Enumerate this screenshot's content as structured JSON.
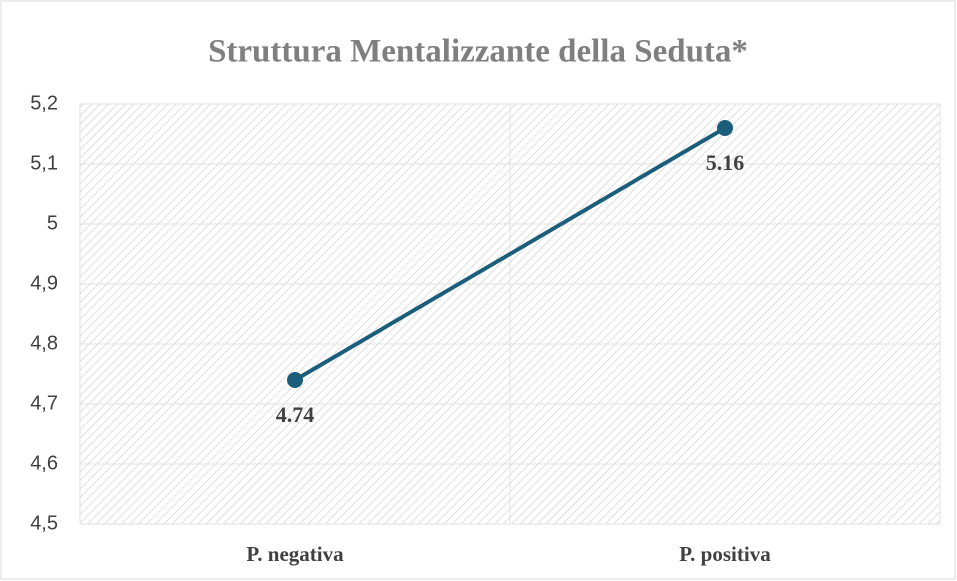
{
  "chart_data": {
    "type": "line",
    "title": "Struttura Mentalizzante della Seduta*",
    "categories": [
      "P. negativa",
      "P. positiva"
    ],
    "series": [
      {
        "name": "Struttura Mentalizzante",
        "color": "#1b5e7b",
        "values": [
          4.74,
          5.16
        ]
      }
    ],
    "ylim": [
      4.5,
      5.2
    ],
    "yticks": [
      {
        "value": 4.5,
        "label": "4,5"
      },
      {
        "value": 4.6,
        "label": "4,6"
      },
      {
        "value": 4.7,
        "label": "4,7"
      },
      {
        "value": 4.8,
        "label": "4,8"
      },
      {
        "value": 4.9,
        "label": "4,9"
      },
      5,
      {
        "value": 5.1,
        "label": "5,1"
      },
      {
        "value": 5.2,
        "label": "5,2"
      }
    ],
    "grid": true
  }
}
